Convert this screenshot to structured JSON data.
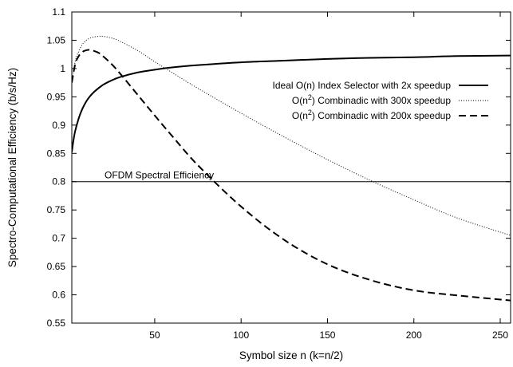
{
  "chart_data": {
    "type": "line",
    "title": "",
    "xlabel": "Symbol size n (k=n/2)",
    "ylabel": "Spectro-Computational Efficiency (b/s/Hz)",
    "xlim": [
      2,
      256
    ],
    "ylim": [
      0.55,
      1.1
    ],
    "xticks": [
      50,
      100,
      150,
      200,
      250
    ],
    "xtick_labels": [
      "50",
      "100",
      "150",
      "200",
      "250"
    ],
    "yticks": [
      0.55,
      0.6,
      0.65,
      0.7,
      0.75,
      0.8,
      0.85,
      0.9,
      0.95,
      1.0,
      1.05,
      1.1
    ],
    "ytick_labels": [
      "0.55",
      "0.6",
      "0.65",
      "0.7",
      "0.75",
      "0.8",
      "0.85",
      "0.9",
      "0.95",
      "1",
      "1.05",
      "1.1"
    ],
    "grid": false,
    "legend_position": "top-right",
    "series": [
      {
        "name": "Ideal O(n) Index Selector with 2x speedup",
        "legend_parts": [
          "Ideal O(n) Index Selector with 2x speedup"
        ],
        "style": "solid",
        "x": [
          2,
          3,
          4,
          6,
          8,
          10,
          12,
          15,
          20,
          25,
          30,
          40,
          50,
          60,
          75,
          100,
          125,
          150,
          175,
          200,
          225,
          256
        ],
        "y": [
          0.852,
          0.874,
          0.89,
          0.912,
          0.928,
          0.94,
          0.949,
          0.959,
          0.971,
          0.979,
          0.985,
          0.993,
          0.998,
          1.002,
          1.006,
          1.011,
          1.014,
          1.017,
          1.019,
          1.02,
          1.022,
          1.023
        ]
      },
      {
        "name": "O(n2) Combinadic with 300x speedup",
        "legend_parts": [
          "O(n",
          "2",
          ") Combinadic with 300x speedup"
        ],
        "style": "dotted",
        "x": [
          2,
          4,
          6,
          8,
          10,
          12,
          15,
          18,
          20,
          25,
          30,
          40,
          50,
          60,
          75,
          100,
          125,
          150,
          175,
          200,
          225,
          256
        ],
        "y": [
          0.975,
          1.013,
          1.03,
          1.042,
          1.049,
          1.053,
          1.056,
          1.057,
          1.057,
          1.054,
          1.048,
          1.032,
          1.012,
          0.993,
          0.965,
          0.921,
          0.879,
          0.839,
          0.802,
          0.768,
          0.736,
          0.705
        ]
      },
      {
        "name": "O(n2) Combinadic with 200x speedup",
        "legend_parts": [
          "O(n",
          "2",
          ") Combinadic with 200x speedup"
        ],
        "style": "dashed",
        "x": [
          2,
          4,
          6,
          8,
          10,
          12,
          15,
          18,
          20,
          25,
          30,
          40,
          50,
          60,
          75,
          100,
          125,
          150,
          175,
          200,
          225,
          256
        ],
        "y": [
          0.975,
          1.008,
          1.022,
          1.029,
          1.032,
          1.033,
          1.031,
          1.027,
          1.022,
          1.008,
          0.991,
          0.954,
          0.917,
          0.881,
          0.829,
          0.756,
          0.697,
          0.654,
          0.626,
          0.608,
          0.599,
          0.59
        ]
      }
    ],
    "annotations": [
      {
        "type": "hline",
        "y": 0.8,
        "label": "OFDM Spectral Efficiency"
      }
    ]
  }
}
